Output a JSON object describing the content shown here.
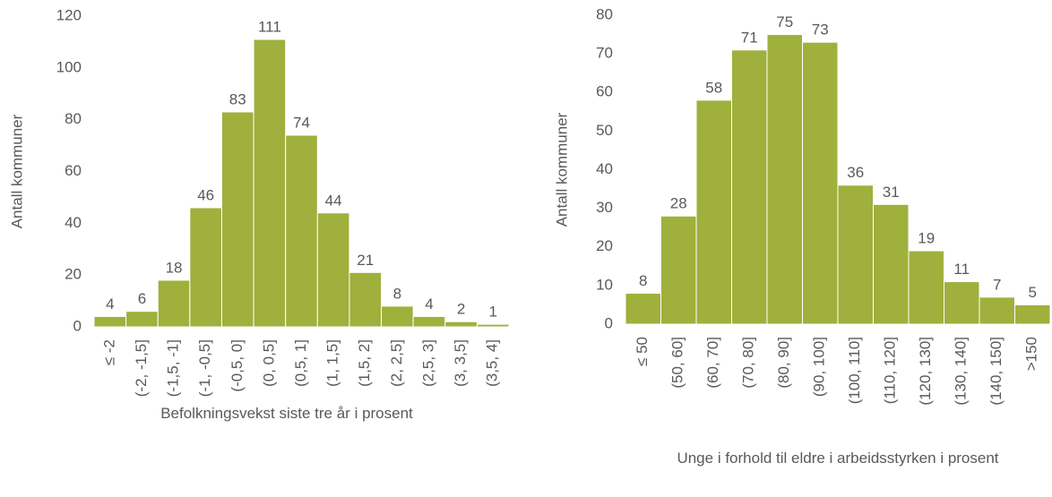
{
  "chart_data": [
    {
      "type": "bar",
      "x_label": "Befolkningsvekst siste tre år i prosent",
      "y_label": "Antall kommuner",
      "categories": [
        "≤ -2",
        "(-2, -1,5]",
        "(-1,5, -1]",
        "(-1, -0,5]",
        "(-0,5, 0]",
        "(0, 0,5]",
        "(0,5, 1]",
        "(1, 1,5]",
        "(1,5, 2]",
        "(2, 2,5]",
        "(2,5, 3]",
        "(3, 3,5]",
        "(3,5, 4]"
      ],
      "values": [
        4,
        6,
        18,
        46,
        83,
        111,
        74,
        44,
        21,
        8,
        4,
        2,
        1
      ],
      "color": "#9fb03c",
      "ylim": [
        0,
        120
      ],
      "yticks": [
        0,
        20,
        40,
        60,
        80,
        100,
        120
      ],
      "grid": false
    },
    {
      "type": "bar",
      "x_label": "Unge i forhold til eldre i arbeidsstyrken i prosent",
      "y_label": "Antall kommuner",
      "categories": [
        "≤ 50",
        "(50, 60]",
        "(60, 70]",
        "(70, 80]",
        "(80, 90]",
        "(90, 100]",
        "(100, 110]",
        "(110, 120]",
        "(120, 130]",
        "(130, 140]",
        "(140, 150]",
        ">150"
      ],
      "values": [
        8,
        28,
        58,
        71,
        75,
        73,
        36,
        31,
        19,
        11,
        7,
        5
      ],
      "color": "#9fb03c",
      "ylim": [
        0,
        80
      ],
      "yticks": [
        0,
        10,
        20,
        30,
        40,
        50,
        60,
        70,
        80
      ],
      "grid": false
    }
  ]
}
